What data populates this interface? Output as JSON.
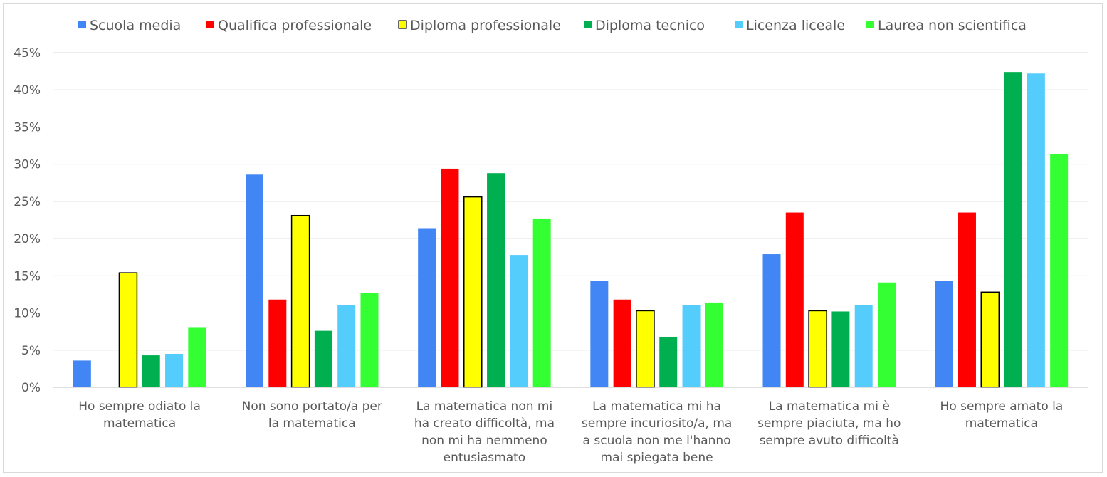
{
  "chart_data": {
    "type": "bar",
    "title": "",
    "xlabel": "",
    "ylabel": "",
    "ylim": [
      0,
      45
    ],
    "yticks": [
      "0%",
      "5%",
      "10%",
      "15%",
      "20%",
      "25%",
      "30%",
      "35%",
      "40%",
      "45%"
    ],
    "grid": true,
    "legend_position": "top",
    "categories": [
      [
        "Ho sempre odiato la",
        "matematica"
      ],
      [
        "Non sono portato/a per",
        "la matematica"
      ],
      [
        "La matematica non mi",
        "ha creato difficoltà, ma",
        "non mi ha nemmeno",
        "entusiasmato"
      ],
      [
        "La matematica mi ha",
        "sempre incuriosito/a, ma",
        "a scuola non me l'hanno",
        "mai spiegata bene"
      ],
      [
        "La matematica mi è",
        "sempre piaciuta, ma ho",
        "sempre avuto difficoltà"
      ],
      [
        "Ho sempre amato la",
        "matematica"
      ]
    ],
    "series": [
      {
        "name": "Scuola media",
        "color": "#4285f4",
        "outline": false,
        "values": [
          3.6,
          28.6,
          21.4,
          14.3,
          17.9,
          14.3
        ]
      },
      {
        "name": "Qualifica professionale",
        "color": "#ff0000",
        "outline": false,
        "values": [
          0,
          11.8,
          29.4,
          11.8,
          23.5,
          23.5
        ]
      },
      {
        "name": "Diploma professionale",
        "color": "#ffff00",
        "outline": true,
        "values": [
          15.4,
          23.1,
          25.6,
          10.3,
          10.3,
          12.8
        ]
      },
      {
        "name": "Diploma tecnico",
        "color": "#00b050",
        "outline": false,
        "values": [
          4.3,
          7.6,
          28.8,
          6.8,
          10.2,
          42.4
        ]
      },
      {
        "name": "Licenza liceale",
        "color": "#55cdfc",
        "outline": false,
        "values": [
          4.5,
          11.1,
          17.8,
          11.1,
          11.1,
          42.2
        ]
      },
      {
        "name": "Laurea non scientifica",
        "color": "#33ff33",
        "outline": false,
        "values": [
          8.0,
          12.7,
          22.7,
          11.4,
          14.1,
          31.4
        ]
      }
    ]
  }
}
